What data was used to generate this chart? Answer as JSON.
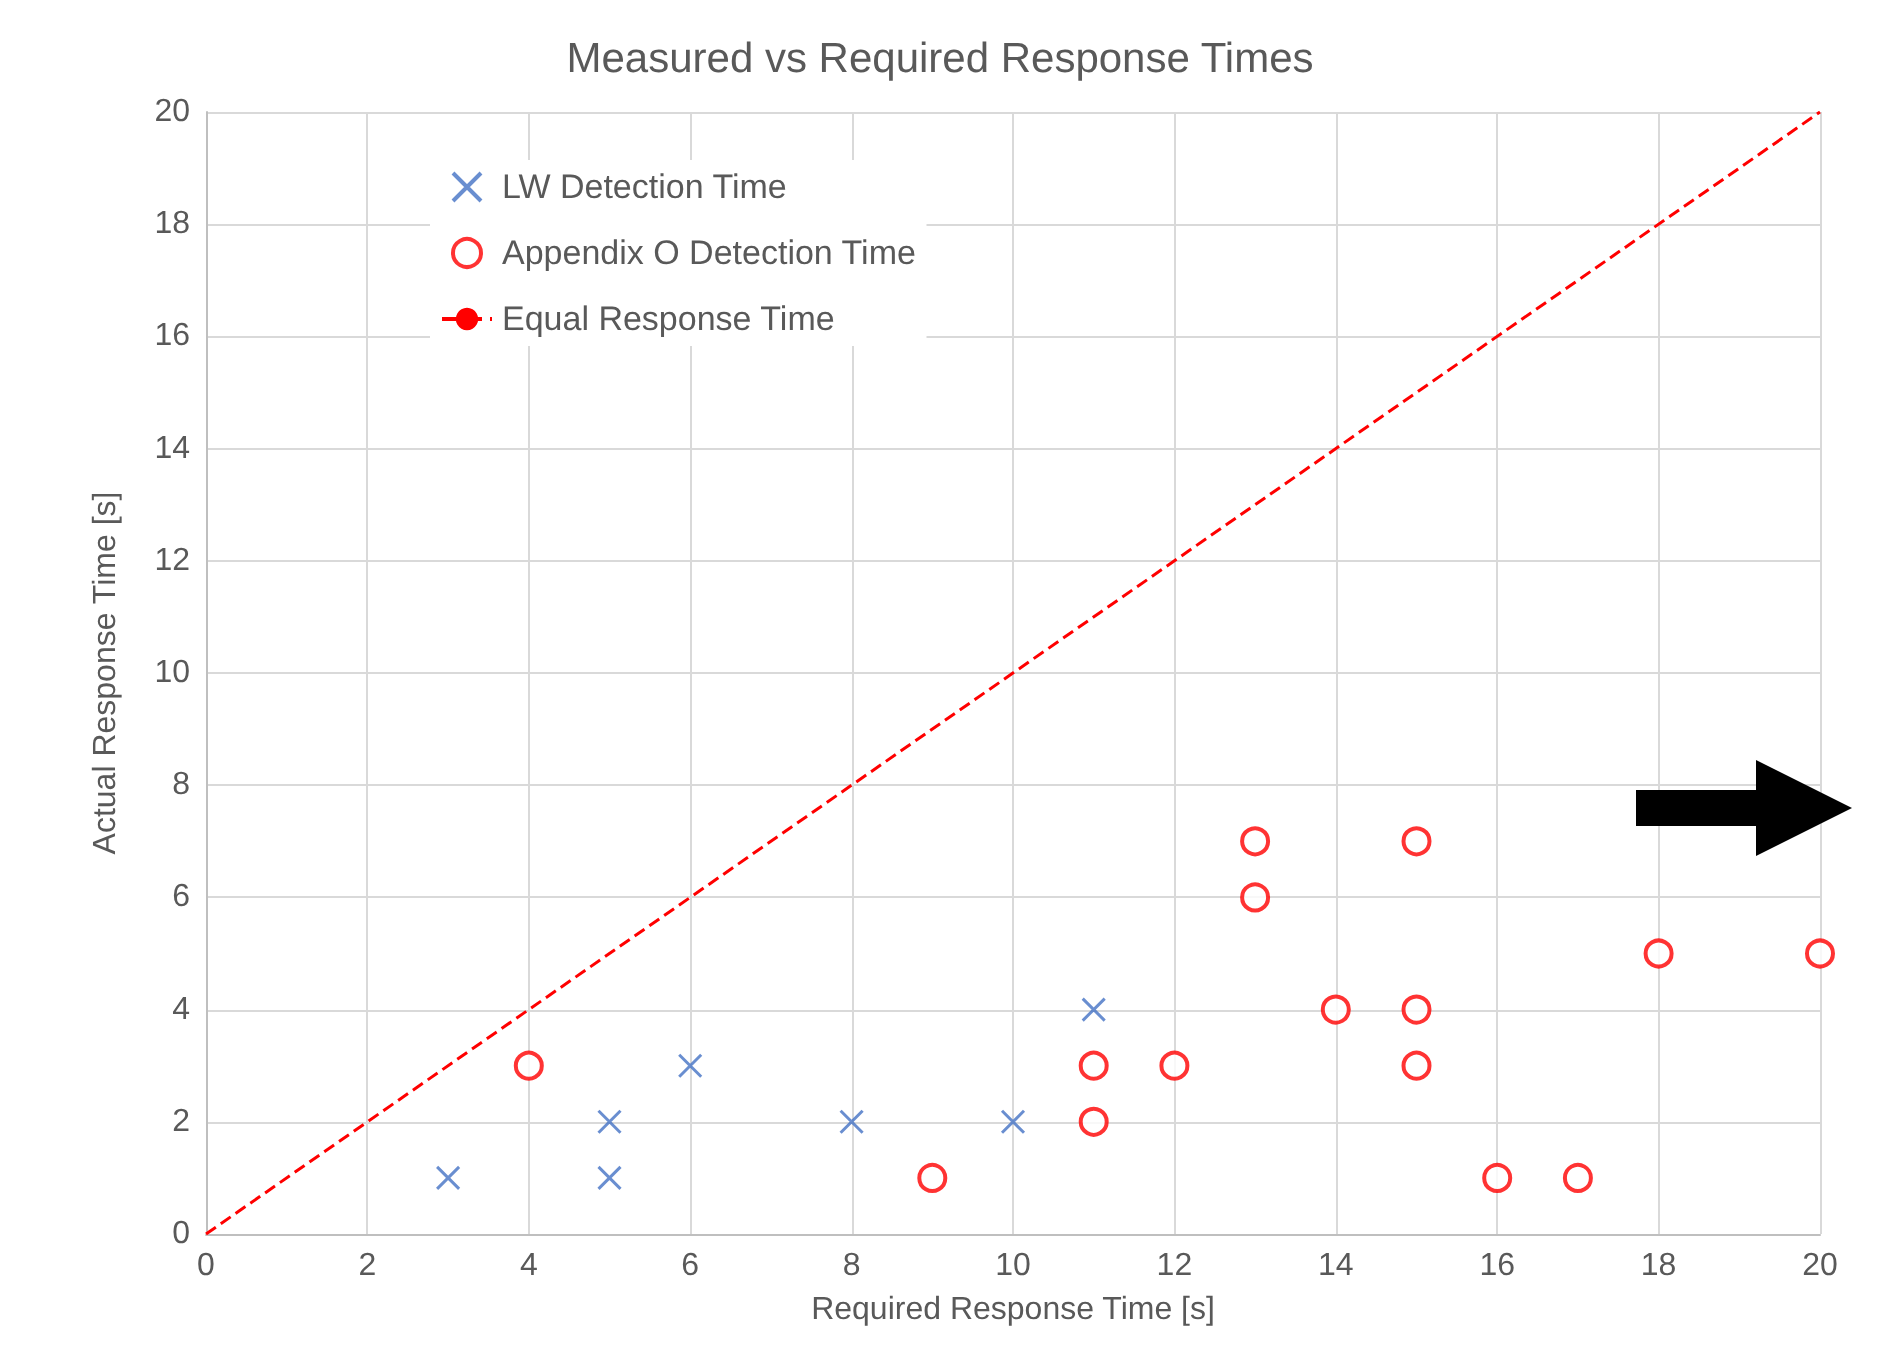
{
  "chart_data": {
    "type": "scatter",
    "title": "Measured vs Required Response Times",
    "xlabel": "Required Response Time [s]",
    "ylabel": "Actual Response Time [s]",
    "xlim": [
      0,
      20
    ],
    "xticks": [
      0,
      2,
      4,
      6,
      8,
      10,
      12,
      14,
      16,
      18,
      20
    ],
    "ylim": [
      0,
      20
    ],
    "yticks": [
      0,
      2,
      4,
      6,
      8,
      10,
      12,
      14,
      16,
      18,
      20
    ],
    "grid": true,
    "legend": "top left",
    "series": [
      {
        "name": "LW Detection Time",
        "color": "#4472c4",
        "marker": "cross",
        "x": [
          3,
          5,
          5,
          6,
          8,
          10,
          11
        ],
        "values": [
          1,
          2,
          1,
          3,
          2,
          2,
          4
        ]
      },
      {
        "name": "Appendix O Detection Time",
        "color": "#ff0000",
        "marker": "circle",
        "x": [
          4,
          9,
          11,
          11,
          12,
          13,
          13,
          14,
          15,
          15,
          15,
          16,
          17,
          18,
          20
        ],
        "values": [
          3,
          1,
          3,
          2,
          3,
          7,
          6,
          4,
          7,
          4,
          3,
          1,
          1,
          5,
          5
        ]
      },
      {
        "name": "Equal Response Time",
        "type": "line",
        "color": "#ff0000",
        "line_style": "dashed",
        "marker": "none",
        "x": [
          0,
          20
        ],
        "values": [
          0,
          20
        ]
      }
    ]
  }
}
